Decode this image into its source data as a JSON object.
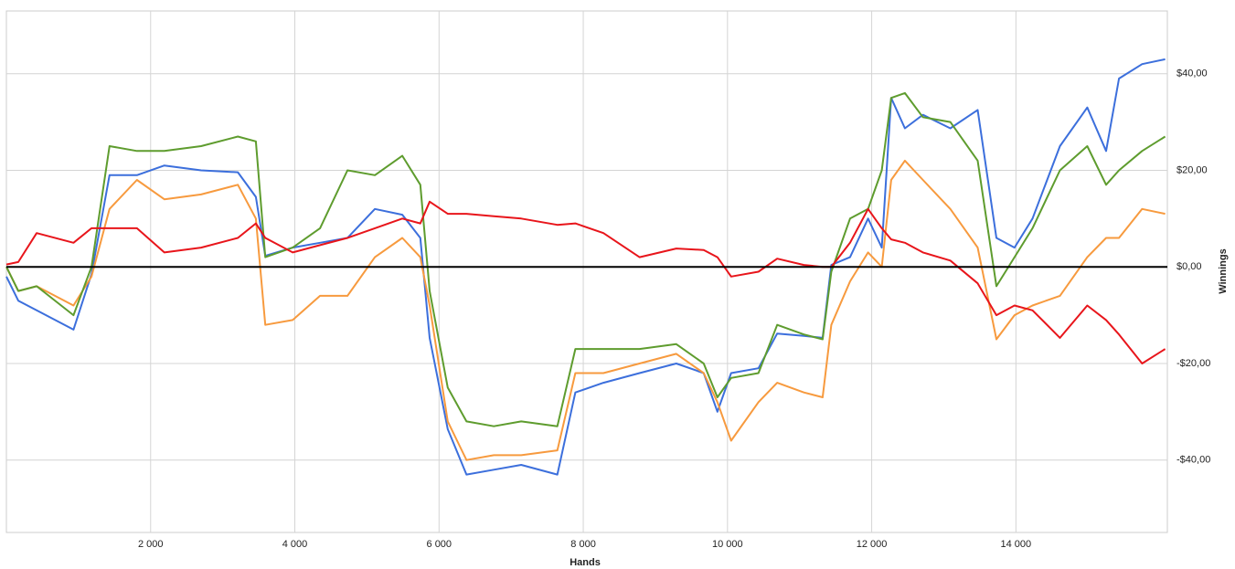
{
  "chart_data": {
    "type": "line",
    "x_label": "Hands",
    "y_label": "Winnings",
    "x": [
      0,
      165,
      420,
      930,
      1180,
      1430,
      1810,
      2190,
      2700,
      3210,
      3460,
      3590,
      3970,
      4350,
      4730,
      5110,
      5490,
      5740,
      5870,
      6120,
      6380,
      6760,
      7140,
      7640,
      7890,
      8280,
      8780,
      9290,
      9670,
      9860,
      10050,
      10430,
      10690,
      11060,
      11320,
      11440,
      11700,
      11950,
      12140,
      12270,
      12460,
      12710,
      13090,
      13470,
      13730,
      13980,
      14230,
      14610,
      14990,
      15250,
      15430,
      15750,
      16070
    ],
    "series": [
      {
        "color": "#3c6fdc",
        "values": [
          -2,
          -7,
          -9,
          -13,
          -1.5,
          19,
          19,
          21,
          20,
          19.6,
          14.5,
          2.3,
          4,
          5,
          6,
          12,
          10.8,
          6,
          -14.7,
          -33.6,
          -43,
          -42,
          -41,
          -43,
          -26,
          -24,
          -22,
          -20,
          -22,
          -30,
          -22,
          -21,
          -13.8,
          -14.3,
          -14.7,
          0.4,
          2,
          10,
          4,
          35,
          28.7,
          31.5,
          28.7,
          32.5,
          6,
          4,
          10,
          25,
          33,
          24,
          39,
          42,
          43
        ]
      },
      {
        "color": "#f79a3e",
        "values": [
          0,
          -5,
          -4,
          -8,
          -2,
          12,
          18,
          14,
          15,
          17,
          10,
          -12,
          -11,
          -6,
          -6,
          2,
          6,
          2,
          -8,
          -32,
          -40,
          -39,
          -39,
          -38,
          -22,
          -22,
          -20,
          -18,
          -22,
          -28,
          -36,
          -28,
          -24,
          -26,
          -27,
          -12,
          -3,
          3,
          0,
          18,
          22,
          18,
          12,
          4,
          -15,
          -10,
          -8,
          -6,
          2,
          6,
          6,
          12,
          11
        ]
      },
      {
        "color": "#5e9c2e",
        "values": [
          0,
          -5,
          -4,
          -10,
          0,
          25,
          24,
          24,
          25,
          27,
          26,
          2,
          4,
          8,
          20,
          19,
          23,
          17,
          -5,
          -25,
          -32,
          -33,
          -32,
          -33,
          -17,
          -17,
          -17,
          -16,
          -20,
          -27,
          -23,
          -22,
          -12,
          -14,
          -15,
          -1,
          10,
          12,
          20,
          35,
          36,
          31,
          30,
          22,
          -4,
          2,
          8,
          20,
          25,
          17,
          20,
          24,
          27
        ]
      },
      {
        "color": "#e8151b",
        "values": [
          0.5,
          1,
          7,
          5,
          8,
          8,
          8,
          3,
          4,
          6,
          9,
          6,
          3,
          4.5,
          6,
          8,
          10,
          9,
          13.5,
          11,
          11,
          10.5,
          10,
          8.7,
          9,
          7,
          2,
          3.8,
          3.5,
          2,
          -2,
          -1,
          1.7,
          0.4,
          0,
          0,
          5,
          12,
          8,
          5.7,
          5,
          3,
          1.3,
          -3.4,
          -10,
          -8,
          -9,
          -14.7,
          -8,
          -11,
          -14,
          -20,
          -17
        ]
      }
    ],
    "xlim": [
      0,
      16100
    ],
    "ylim": [
      -55,
      53
    ],
    "xticks": [
      {
        "value": 2000,
        "label": "2 000"
      },
      {
        "value": 4000,
        "label": "4 000"
      },
      {
        "value": 6000,
        "label": "6 000"
      },
      {
        "value": 8000,
        "label": "8 000"
      },
      {
        "value": 10000,
        "label": "10 000"
      },
      {
        "value": 12000,
        "label": "12 000"
      },
      {
        "value": 14000,
        "label": "14 000"
      }
    ],
    "yticks": [
      {
        "value": -40,
        "label": "-$40,00"
      },
      {
        "value": -20,
        "label": "-$20,00"
      },
      {
        "value": 0,
        "label": "$0,00"
      },
      {
        "value": 20,
        "label": "$20,00"
      },
      {
        "value": 40,
        "label": "$40,00"
      }
    ],
    "grid": true
  }
}
